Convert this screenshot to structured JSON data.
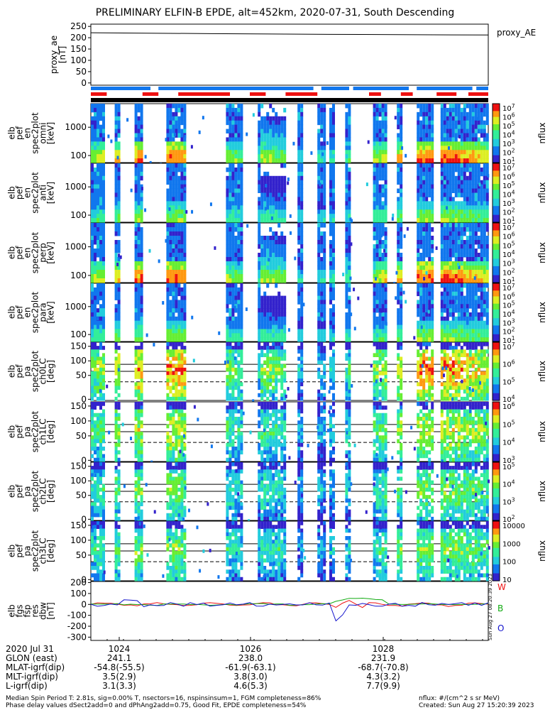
{
  "title": "PRELIMINARY ELFIN-B EPDE, alt=452km, 2020-07-31, South Descending",
  "ephemeris": {
    "labels": [
      "2020 Jul 31",
      "GLON (east)",
      "MLAT-igrf(dip)",
      "MLT-igrf(dip)",
      "L-igrf(dip)"
    ],
    "columns": [
      {
        "time": "1024",
        "glon": "241.1",
        "mlat": "-54.8(-55.5)",
        "mlt": "3.5(2.9)",
        "l": "3.1(3.3)"
      },
      {
        "time": "1026",
        "glon": "238.0",
        "mlat": "-61.9(-63.1)",
        "mlt": "3.8(3.0)",
        "l": "4.6(5.3)"
      },
      {
        "time": "1028",
        "glon": "231.9",
        "mlat": "-68.7(-70.8)",
        "mlt": "4.3(3.2)",
        "l": "7.7(9.9)"
      }
    ]
  },
  "footer": {
    "line1": "Median Spin Period T: 2.81s, sig=0.00% T, nsectors=16, nspinsinsum=1, FGM completeness=86%",
    "line2": "Phase delay values dSect2add=0 and dPhAng2add=0.75, Good Fit, EPDE completeness=54%",
    "units": "nflux: #/(cm^2 s sr MeV)",
    "created": "Created: Sun Aug 27 15:20:39 2023",
    "side_stamp": "Sun Aug 27 08:20:39 2023"
  },
  "chart_data": [
    {
      "type": "line",
      "ylabel": [
        "proxy_ae",
        "[nT]"
      ],
      "legend": "proxy_AE",
      "yticks": [
        "250",
        "200",
        "150",
        "100",
        "50",
        "0"
      ],
      "ylim": [
        -10,
        260
      ],
      "x": [
        0,
        0.3,
        0.6,
        1.0
      ],
      "values": [
        222,
        218,
        215,
        212
      ]
    },
    {
      "type": "bar",
      "name": "indicator bars",
      "rows": [
        {
          "color": "#1177ee",
          "segments": [
            [
              0.0,
              0.15
            ],
            [
              0.17,
              0.56
            ],
            [
              0.58,
              0.65
            ],
            [
              0.66,
              0.8
            ],
            [
              0.82,
              0.96
            ],
            [
              0.97,
              1.0
            ]
          ]
        },
        {
          "color": "#ee1111",
          "segments": [
            [
              0.0,
              0.04
            ],
            [
              0.13,
              0.17
            ],
            [
              0.22,
              0.35
            ],
            [
              0.4,
              0.44
            ],
            [
              0.49,
              0.57
            ],
            [
              0.7,
              0.73
            ],
            [
              0.78,
              0.81
            ],
            [
              0.87,
              0.92
            ],
            [
              0.95,
              1.0
            ]
          ]
        },
        {
          "color": "#000000",
          "segments": [
            [
              0.0,
              1.0
            ]
          ]
        }
      ]
    },
    {
      "type": "heatmap",
      "ylabel": [
        "elb",
        "pef",
        "en",
        "spec2plot",
        "omni",
        "[keV]"
      ],
      "yticks": [
        "1000",
        "100"
      ],
      "colorbar": {
        "ticks": [
          "10^7",
          "10^6",
          "10^5",
          "10^4",
          "10^3",
          "10^2",
          "10^1"
        ],
        "label": "nflux"
      }
    },
    {
      "type": "heatmap",
      "ylabel": [
        "elb",
        "pef",
        "en",
        "spec2plot",
        "anti",
        "[keV]"
      ],
      "yticks": [
        "1000",
        "100"
      ],
      "colorbar": {
        "ticks": [
          "10^7",
          "10^6",
          "10^5",
          "10^4",
          "10^3",
          "10^2",
          "10^1"
        ],
        "label": "nflux"
      }
    },
    {
      "type": "heatmap",
      "ylabel": [
        "elb",
        "pef",
        "en",
        "spec2plot",
        "perp",
        "[keV]"
      ],
      "yticks": [
        "1000",
        "100"
      ],
      "colorbar": {
        "ticks": [
          "10^7",
          "10^6",
          "10^5",
          "10^4",
          "10^3",
          "10^2",
          "10^1"
        ],
        "label": "nflux"
      }
    },
    {
      "type": "heatmap",
      "ylabel": [
        "elb",
        "pef",
        "en",
        "spec2plot",
        "para",
        "[keV]"
      ],
      "yticks": [
        "1000",
        "100"
      ],
      "colorbar": {
        "ticks": [
          "10^7",
          "10^6",
          "10^5",
          "10^4",
          "10^3",
          "10^2",
          "10^1"
        ],
        "label": "nflux"
      }
    },
    {
      "type": "heatmap",
      "ylabel": [
        "elb",
        "pef",
        "pa",
        "spec2plot",
        "ch0LC",
        "[deg]"
      ],
      "yticks": [
        "150",
        "100",
        "50",
        "0"
      ],
      "colorbar": {
        "ticks": [
          "10^7",
          "10^6",
          "10^5",
          "10^4"
        ],
        "label": "nflux"
      }
    },
    {
      "type": "heatmap",
      "ylabel": [
        "elb",
        "pef",
        "pa",
        "spec2plot",
        "ch1LC",
        "[deg]"
      ],
      "yticks": [
        "150",
        "100",
        "50",
        "0"
      ],
      "colorbar": {
        "ticks": [
          "10^6",
          "10^5",
          "10^4",
          "10^3"
        ],
        "label": "nflux"
      }
    },
    {
      "type": "heatmap",
      "ylabel": [
        "elb",
        "pef",
        "pa",
        "spec2plot",
        "ch2LC",
        "[deg]"
      ],
      "yticks": [
        "150",
        "100",
        "50",
        "0"
      ],
      "colorbar": {
        "ticks": [
          "10^5",
          "10^4",
          "10^3",
          "10^2"
        ],
        "label": "nflux"
      }
    },
    {
      "type": "heatmap",
      "ylabel": [
        "elb",
        "pef",
        "pa",
        "spec2plot",
        "ch3LC",
        "[deg]"
      ],
      "yticks": [
        "150",
        "100",
        "50",
        "0"
      ],
      "colorbar": {
        "ticks": [
          "10000",
          "1000",
          "100",
          "10"
        ],
        "label": "nflux"
      }
    },
    {
      "type": "line",
      "ylabel": [
        "elb",
        "fgs",
        "fsp",
        "res",
        "dbw",
        "[nT]"
      ],
      "yticks": [
        "200",
        "100",
        "0",
        "-100",
        "-200",
        "-300"
      ],
      "ylim": [
        -330,
        210
      ],
      "series": [
        {
          "name": "W",
          "color": "#ee1111"
        },
        {
          "name": "B",
          "color": "#11aa11"
        },
        {
          "name": "O",
          "color": "#1111cc"
        }
      ]
    }
  ]
}
